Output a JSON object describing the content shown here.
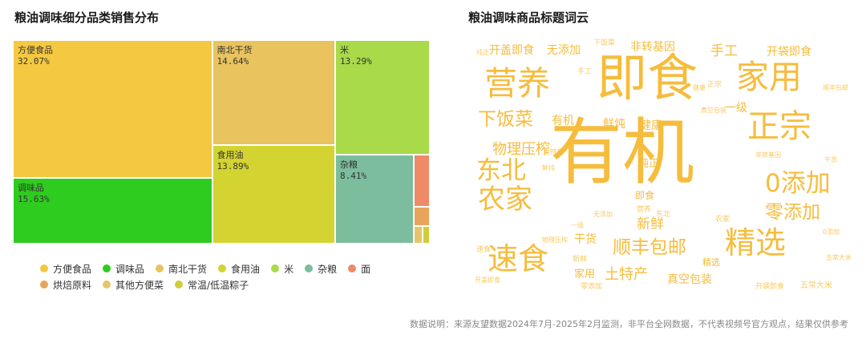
{
  "left": {
    "title": "粮油调味细分品类销售分布"
  },
  "right": {
    "title": "粮油调味商品标题词云"
  },
  "chart_data": [
    {
      "type": "treemap",
      "title": "粮油调味细分品类销售分布",
      "items": [
        {
          "name": "方便食品",
          "value": 32.07,
          "label": "32.07%",
          "color": "#F5C842"
        },
        {
          "name": "调味品",
          "value": 15.63,
          "label": "15.63%",
          "color": "#2ECC1F"
        },
        {
          "name": "南北干货",
          "value": 14.64,
          "label": "14.64%",
          "color": "#E8C35E"
        },
        {
          "name": "食用油",
          "value": 13.89,
          "label": "13.89%",
          "color": "#D3D431"
        },
        {
          "name": "米",
          "value": 13.29,
          "label": "13.29%",
          "color": "#A8DA4A"
        },
        {
          "name": "杂粮",
          "value": 8.41,
          "label": "8.41%",
          "color": "#7BBD9C"
        },
        {
          "name": "面",
          "value": 1.5,
          "label": "",
          "color": "#EE8A68"
        },
        {
          "name": "烘焙原料",
          "value": 0.9,
          "label": "",
          "color": "#E8A55A"
        },
        {
          "name": "其他方便菜",
          "value": 0.4,
          "label": "",
          "color": "#E6C56A"
        },
        {
          "name": "常温/低温粽子",
          "value": 0.3,
          "label": "",
          "color": "#CFCE3A"
        }
      ],
      "legend": [
        [
          "方便食品",
          "调味品",
          "南北干货",
          "食用油",
          "米",
          "杂粮",
          "面"
        ],
        [
          "烘焙原料",
          "其他方便菜",
          "常温/低温粽子"
        ]
      ]
    },
    {
      "type": "wordcloud",
      "title": "粮油调味商品标题词云",
      "words": [
        {
          "text": "有机",
          "weight": 100,
          "color": "#F6BC3C"
        },
        {
          "text": "即食",
          "weight": 70,
          "color": "#F6BC3C"
        },
        {
          "text": "营养",
          "weight": 45,
          "color": "#F6BC3C"
        },
        {
          "text": "家用",
          "weight": 45,
          "color": "#F6BC3C"
        },
        {
          "text": "正宗",
          "weight": 44,
          "color": "#F6BC3C"
        },
        {
          "text": "精选",
          "weight": 42,
          "color": "#F6BC3C"
        },
        {
          "text": "速食",
          "weight": 42,
          "color": "#F6BC3C"
        },
        {
          "text": "农家",
          "weight": 38,
          "color": "#F6BC3C"
        },
        {
          "text": "东北",
          "weight": 34,
          "color": "#F6BC3C"
        },
        {
          "text": "0添加",
          "weight": 34,
          "color": "#F6BC3C"
        },
        {
          "text": "顺丰包邮",
          "weight": 26,
          "color": "#F6BC3C"
        },
        {
          "text": "零添加",
          "weight": 26,
          "color": "#F6BC3C"
        },
        {
          "text": "下饭菜",
          "weight": 26,
          "color": "#F6BC3C"
        },
        {
          "text": "物理压榨",
          "weight": 20,
          "color": "#F6BC3C"
        },
        {
          "text": "土特产",
          "weight": 20,
          "color": "#F6BC3C"
        },
        {
          "text": "新鲜",
          "weight": 19,
          "color": "#F6BC3C"
        },
        {
          "text": "手工",
          "weight": 19,
          "color": "#F6BC3C"
        },
        {
          "text": "真空包装",
          "weight": 16,
          "color": "#F6BC3C"
        },
        {
          "text": "开盖即食",
          "weight": 16,
          "color": "#F6BC3C"
        },
        {
          "text": "无添加",
          "weight": 16,
          "color": "#F6BC3C"
        },
        {
          "text": "开袋即食",
          "weight": 16,
          "color": "#F6BC3C"
        },
        {
          "text": "非转基因",
          "weight": 15,
          "color": "#F6BC3C"
        },
        {
          "text": "鲜炖",
          "weight": 16,
          "color": "#F6BC3C"
        },
        {
          "text": "健康",
          "weight": 16,
          "color": "#F6BC3C"
        },
        {
          "text": "有机",
          "weight": 16,
          "color": "#F6BC3C"
        },
        {
          "text": "一级",
          "weight": 16,
          "color": "#F6BC3C"
        },
        {
          "text": "纯正",
          "weight": 14,
          "color": "#F6BC3C"
        },
        {
          "text": "干货",
          "weight": 16,
          "color": "#F6BC3C"
        },
        {
          "text": "家用",
          "weight": 14,
          "color": "#F6BC3C"
        },
        {
          "text": "即食",
          "weight": 13,
          "color": "#F6BC3C"
        },
        {
          "text": "精选",
          "weight": 12,
          "color": "#F6BC3C"
        },
        {
          "text": "五常大米",
          "weight": 11,
          "color": "#F6BC3C"
        },
        {
          "text": "开袋即食",
          "weight": 10,
          "color": "#F6BC3C"
        },
        {
          "text": "零添加",
          "weight": 10,
          "color": "#F6BC3C"
        },
        {
          "text": "东北",
          "weight": 10,
          "color": "#F6BC3C"
        },
        {
          "text": "手工",
          "weight": 10,
          "color": "#F6BC3C"
        },
        {
          "text": "正宗",
          "weight": 10,
          "color": "#F6BC3C"
        },
        {
          "text": "新鲜",
          "weight": 10,
          "color": "#F6BC3C"
        },
        {
          "text": "营养",
          "weight": 10,
          "color": "#F6BC3C"
        },
        {
          "text": "速食",
          "weight": 10,
          "color": "#F6BC3C"
        },
        {
          "text": "农家",
          "weight": 10,
          "color": "#F6BC3C"
        },
        {
          "text": "下饭菜",
          "weight": 10,
          "color": "#F6BC3C"
        },
        {
          "text": "无添加",
          "weight": 9,
          "color": "#F6BC3C"
        },
        {
          "text": "鲜炖",
          "weight": 9,
          "color": "#F6BC3C"
        },
        {
          "text": "纯正",
          "weight": 9,
          "color": "#F6BC3C"
        },
        {
          "text": "0添加",
          "weight": 9,
          "color": "#F6BC3C"
        },
        {
          "text": "健康",
          "weight": 9,
          "color": "#F6BC3C"
        },
        {
          "text": "真空包装",
          "weight": 9,
          "color": "#F6BC3C"
        },
        {
          "text": "顺丰包邮",
          "weight": 9,
          "color": "#F6BC3C"
        },
        {
          "text": "土特产",
          "weight": 9,
          "color": "#F6BC3C"
        },
        {
          "text": "一级",
          "weight": 9,
          "color": "#F6BC3C"
        },
        {
          "text": "干货",
          "weight": 9,
          "color": "#F6BC3C"
        },
        {
          "text": "物理压榨",
          "weight": 8,
          "color": "#F6BC3C"
        },
        {
          "text": "非转基因",
          "weight": 8,
          "color": "#F6BC3C"
        },
        {
          "text": "开盖即食",
          "weight": 8,
          "color": "#F6BC3C"
        },
        {
          "text": "五常大米",
          "weight": 8,
          "color": "#F6BC3C"
        }
      ]
    }
  ],
  "footer": {
    "note": "数据说明：来源友望数据2024年7月-2025年2月监测，非平台全网数据，不代表视频号官方观点，结果仅供参考"
  }
}
